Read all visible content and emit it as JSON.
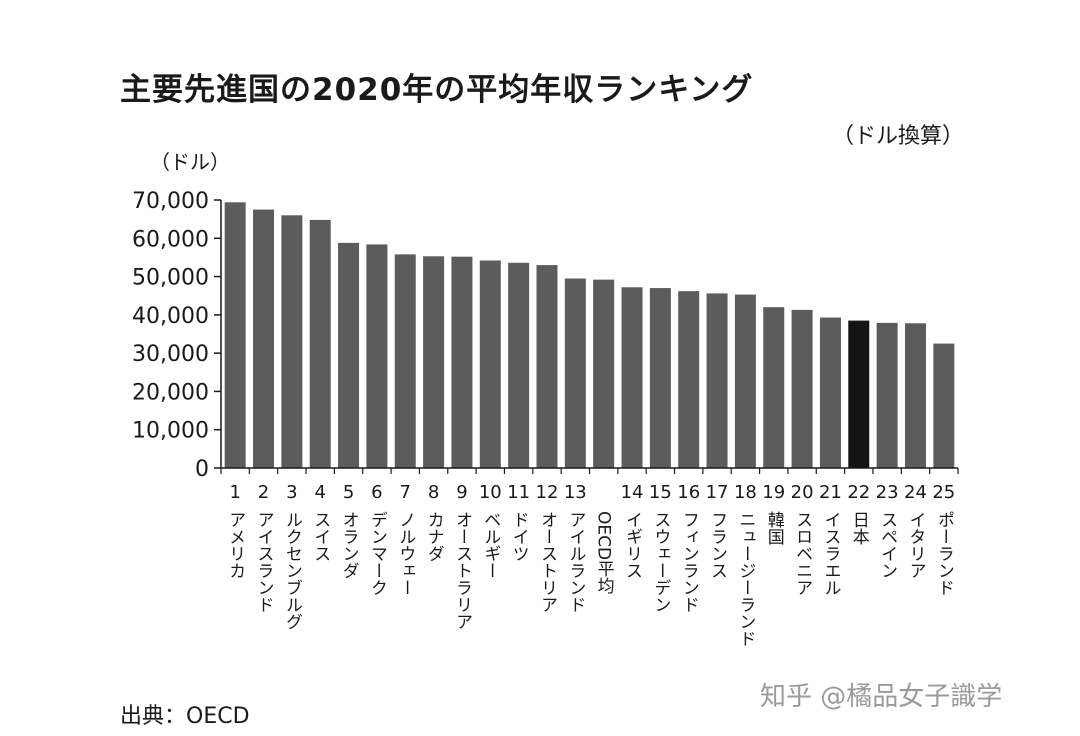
{
  "chart_data": {
    "type": "bar",
    "title": "主要先進国の2020年の平均年収ランキング",
    "currency_note": "（ドル換算）",
    "ylabel": "（ドル）",
    "ylim": [
      0,
      70000
    ],
    "yticks": [
      0,
      10000,
      20000,
      30000,
      40000,
      50000,
      60000,
      70000
    ],
    "ytick_labels": [
      "0",
      "10,000",
      "20,000",
      "30,000",
      "40,000",
      "50,000",
      "60,000",
      "70,000"
    ],
    "categories": [
      "アメリカ",
      "アイスランド",
      "ルクセンブルグ",
      "スイス",
      "オランダ",
      "デンマーク",
      "ノルウェー",
      "カナダ",
      "オーストラリア",
      "ベルギー",
      "ドイツ",
      "オーストリア",
      "アイルランド",
      "OECD平均",
      "イギリス",
      "スウェーデン",
      "フィンランド",
      "フランス",
      "ニュージーランド",
      "韓国",
      "スロベニア",
      "イスラエル",
      "日本",
      "スペイン",
      "イタリア",
      "ポーランド"
    ],
    "ranks": [
      "1",
      "2",
      "3",
      "4",
      "5",
      "6",
      "7",
      "8",
      "9",
      "10",
      "11",
      "12",
      "13",
      "",
      "14",
      "15",
      "16",
      "17",
      "18",
      "19",
      "20",
      "21",
      "22",
      "23",
      "24",
      "25"
    ],
    "values": [
      69400,
      67500,
      66000,
      64800,
      58800,
      58400,
      55800,
      55300,
      55200,
      54200,
      53600,
      53000,
      49500,
      49200,
      47200,
      47000,
      46200,
      45600,
      45300,
      42000,
      41300,
      39300,
      38500,
      37900,
      37800,
      32500
    ],
    "highlight": "日本",
    "colors": {
      "bar": "#5c5c5c",
      "highlight": "#141414",
      "axis": "#1a1a1a"
    }
  },
  "source": "出典：OECD",
  "watermark": "知乎 @橘品女子識学"
}
